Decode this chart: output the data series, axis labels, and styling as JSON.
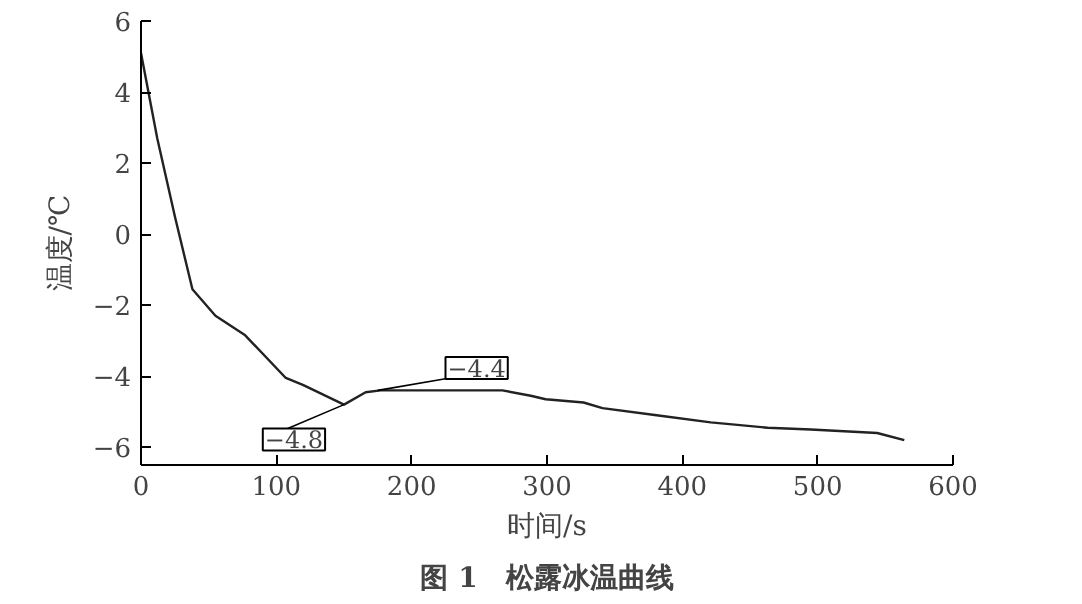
{
  "chart_data": {
    "type": "line",
    "title": "图 1　松露冰温曲线",
    "xlabel": "时间/s",
    "ylabel": "温度/℃",
    "x": [
      0,
      12,
      25,
      38,
      55,
      77,
      107,
      120,
      150,
      166,
      177,
      267,
      288,
      299,
      327,
      341,
      381,
      421,
      463,
      495,
      544,
      564
    ],
    "series": [
      {
        "color": "#222222",
        "values": [
          5.1,
          2.7,
          0.5,
          -1.55,
          -2.3,
          -2.85,
          -4.05,
          -4.25,
          -4.8,
          -4.45,
          -4.4,
          -4.4,
          -4.55,
          -4.65,
          -4.74,
          -4.9,
          -5.1,
          -5.3,
          -5.45,
          -5.5,
          -5.6,
          -5.8
        ]
      }
    ],
    "xlim": [
      0,
      600
    ],
    "ylim": [
      -6.5,
      6
    ],
    "xticks": [
      0,
      100,
      200,
      300,
      400,
      500,
      600
    ],
    "yticks": [
      -6,
      -4,
      -2,
      0,
      2,
      4,
      6
    ],
    "annotations": [
      {
        "text": "−4.8",
        "x": 150,
        "y": -4.8
      },
      {
        "text": "−4.4",
        "x": 175,
        "y": -4.4
      }
    ],
    "grid": false,
    "marker": "none",
    "line_style": "solid"
  }
}
